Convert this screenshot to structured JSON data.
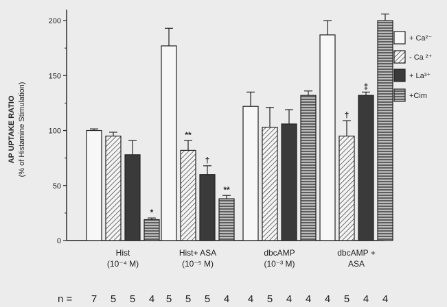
{
  "chart_data": {
    "type": "bar",
    "ylabel": "AP UPTAKE RATIO",
    "ylabel_sub": "(% of Histamine Stimulation)",
    "ylim": [
      0,
      210
    ],
    "yticks": [
      0,
      50,
      100,
      150,
      200
    ],
    "groups": [
      {
        "label": "Hist",
        "sublabel": "(10⁻⁴ M)",
        "n": [
          "7",
          "5",
          "5",
          "4"
        ]
      },
      {
        "label": "Hist+ ASA",
        "sublabel": "(10⁻⁵ M)",
        "n": [
          "5",
          "5",
          "5",
          "4"
        ]
      },
      {
        "label": "dbcAMP",
        "sublabel": "(10⁻³ M)",
        "n": [
          "4",
          "5",
          "4",
          "4"
        ]
      },
      {
        "label": "dbcAMP +",
        "sublabel": "ASA",
        "n": [
          "4",
          "5",
          "4",
          "4"
        ]
      }
    ],
    "series": [
      {
        "name": "+ Ca²⁻",
        "pattern": "open",
        "values": [
          100,
          177,
          122,
          187
        ],
        "errors": [
          1.5,
          16,
          13,
          13
        ],
        "marks": [
          "",
          "",
          "",
          ""
        ]
      },
      {
        "name": "- Ca ²⁺",
        "pattern": "diagonal",
        "values": [
          95,
          82,
          103,
          95
        ],
        "errors": [
          3.5,
          9,
          18,
          14
        ],
        "marks": [
          "",
          "**",
          "",
          "†"
        ]
      },
      {
        "name": "+ La³⁺",
        "pattern": "dark",
        "values": [
          78,
          60,
          106,
          132
        ],
        "errors": [
          13,
          8,
          13,
          3
        ],
        "marks": [
          "",
          "†",
          "",
          "‡"
        ]
      },
      {
        "name": "+Cim",
        "pattern": "horizontal",
        "values": [
          19,
          38,
          132,
          200
        ],
        "errors": [
          1.5,
          3,
          4,
          6
        ],
        "marks": [
          "*",
          "**",
          "",
          ""
        ]
      }
    ],
    "n_label": "n ="
  }
}
